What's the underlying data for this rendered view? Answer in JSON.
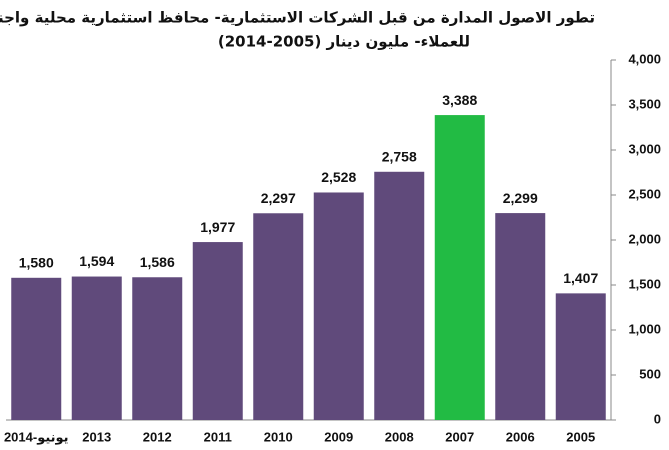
{
  "chart_data": {
    "type": "bar",
    "title": [
      "تطور الاصول المدارة من قبل الشركات الاستثمارية- محافظ استثمارية محلية واجنبية",
      "للعملاء- مليون دينار (2005-2014)"
    ],
    "categories": [
      "2014-يونيو",
      "2013",
      "2012",
      "2011",
      "2010",
      "2009",
      "2008",
      "2007",
      "2006",
      "2005"
    ],
    "values": [
      1580,
      1594,
      1586,
      1977,
      2297,
      2528,
      2758,
      3388,
      2299,
      1407
    ],
    "value_labels": [
      "1,580",
      "1,594",
      "1,586",
      "1,977",
      "2,297",
      "2,528",
      "2,758",
      "3,388",
      "2,299",
      "1,407"
    ],
    "colors": [
      "#604a7b",
      "#604a7b",
      "#604a7b",
      "#604a7b",
      "#604a7b",
      "#604a7b",
      "#604a7b",
      "#22bb44",
      "#604a7b",
      "#604a7b"
    ],
    "ylim": [
      0,
      4000
    ],
    "yticks": [
      0,
      500,
      {
        "value": 1000,
        "label": "1,000"
      },
      {
        "value": 1500,
        "label": "1,500"
      },
      {
        "value": 2000,
        "label": "2,000"
      },
      {
        "value": 2500,
        "label": "2,500"
      },
      {
        "value": 3000,
        "label": "3,000"
      },
      {
        "value": 3500,
        "label": "3,500"
      },
      {
        "value": 4000,
        "label": "4,000"
      }
    ],
    "y_axis_side": "right",
    "grid": false
  }
}
